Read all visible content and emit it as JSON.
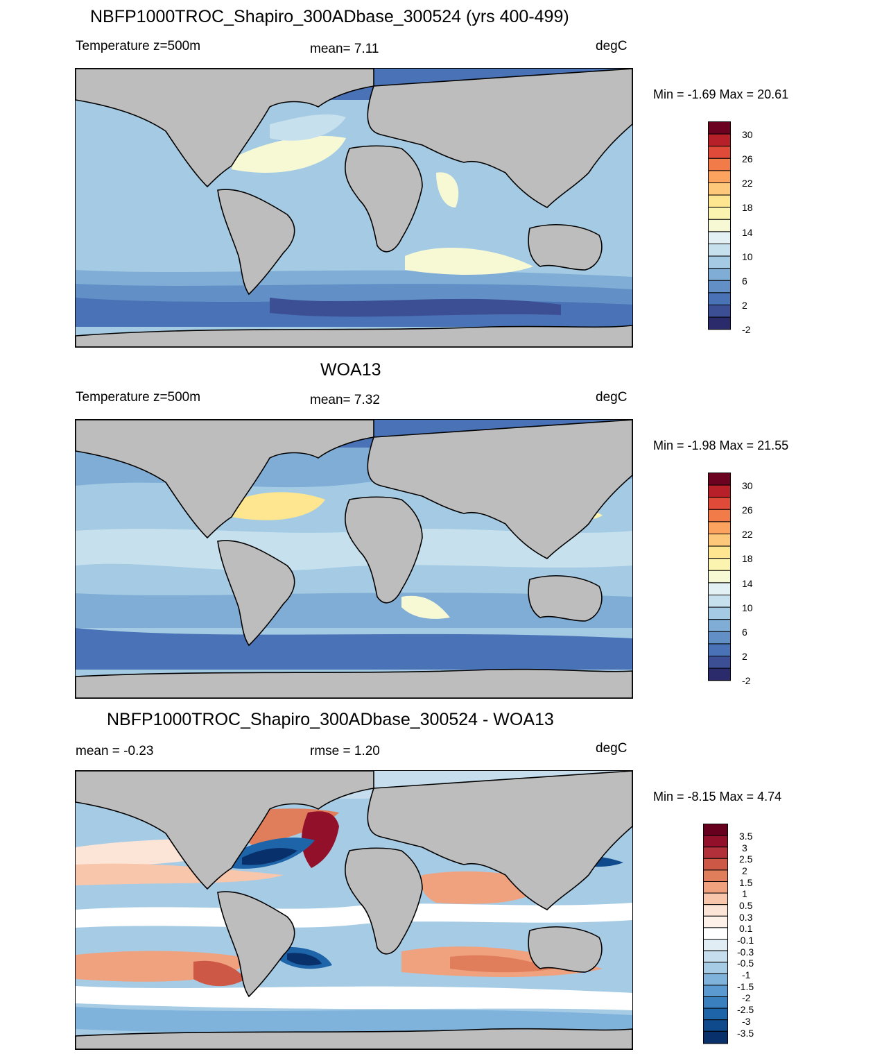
{
  "panels": [
    {
      "title": "NBFP1000TROC_Shapiro_300ADbase_300524 (yrs 400-499)",
      "left_label": "Temperature z=500m",
      "center_label": "mean=   7.11",
      "units": "degC",
      "minmax": "Min =  -1.69 Max =  20.61"
    },
    {
      "title": "WOA13",
      "left_label": "Temperature z=500m",
      "center_label": "mean=   7.32",
      "units": "degC",
      "minmax": "Min =  -1.98 Max =  21.55"
    },
    {
      "title": "NBFP1000TROC_Shapiro_300ADbase_300524 - WOA13",
      "left_label": "mean =  -0.23",
      "center_label": "rmse =   1.20",
      "units": "degC",
      "minmax": "Min =  -8.15 Max =   4.74"
    }
  ],
  "colors": {
    "land": "#bdbdbd",
    "temp_colorbar": [
      "#2b2a6b",
      "#3c4f95",
      "#4a72b6",
      "#6290c6",
      "#7fadd5",
      "#a4cbe3",
      "#c7e0ee",
      "#e3f1f4",
      "#f7f9d5",
      "#fbf3b0",
      "#fde68f",
      "#fdc879",
      "#fba35f",
      "#f27b4a",
      "#df4b38",
      "#b82029",
      "#6b0320"
    ],
    "diff_colorbar": [
      "#08306b",
      "#0e4a8c",
      "#1d64a8",
      "#3a80bf",
      "#5a9ad0",
      "#7fb3dc",
      "#a6cbe5",
      "#c5dded",
      "#e1edf5",
      "#ffffff",
      "#fce4d6",
      "#f8c6ab",
      "#f0a17e",
      "#e07d5b",
      "#cc5845",
      "#b2303a",
      "#921029",
      "#67001f"
    ]
  },
  "chart_data": [
    {
      "type": "heatmap",
      "title": "NBFP1000TROC_Shapiro_300ADbase_300524 (yrs 400-499)",
      "variable": "Temperature z=500m",
      "units": "degC",
      "mean": 7.11,
      "min": -1.69,
      "max": 20.61,
      "colorbar_ticks": [
        "30",
        "26",
        "22",
        "18",
        "14",
        "10",
        "6",
        "2",
        "-2"
      ]
    },
    {
      "type": "heatmap",
      "title": "WOA13",
      "variable": "Temperature z=500m",
      "units": "degC",
      "mean": 7.32,
      "min": -1.98,
      "max": 21.55,
      "colorbar_ticks": [
        "30",
        "26",
        "22",
        "18",
        "14",
        "10",
        "6",
        "2",
        "-2"
      ]
    },
    {
      "type": "heatmap",
      "title": "NBFP1000TROC_Shapiro_300ADbase_300524 - WOA13",
      "units": "degC",
      "mean": -0.23,
      "rmse": 1.2,
      "min": -8.15,
      "max": 4.74,
      "colorbar_ticks": [
        "3.5",
        "3",
        "2.5",
        "2",
        "1.5",
        "1",
        "0.5",
        "0.3",
        "0.1",
        "-0.1",
        "-0.3",
        "-0.5",
        "-1",
        "-1.5",
        "-2",
        "-2.5",
        "-3",
        "-3.5"
      ]
    }
  ]
}
